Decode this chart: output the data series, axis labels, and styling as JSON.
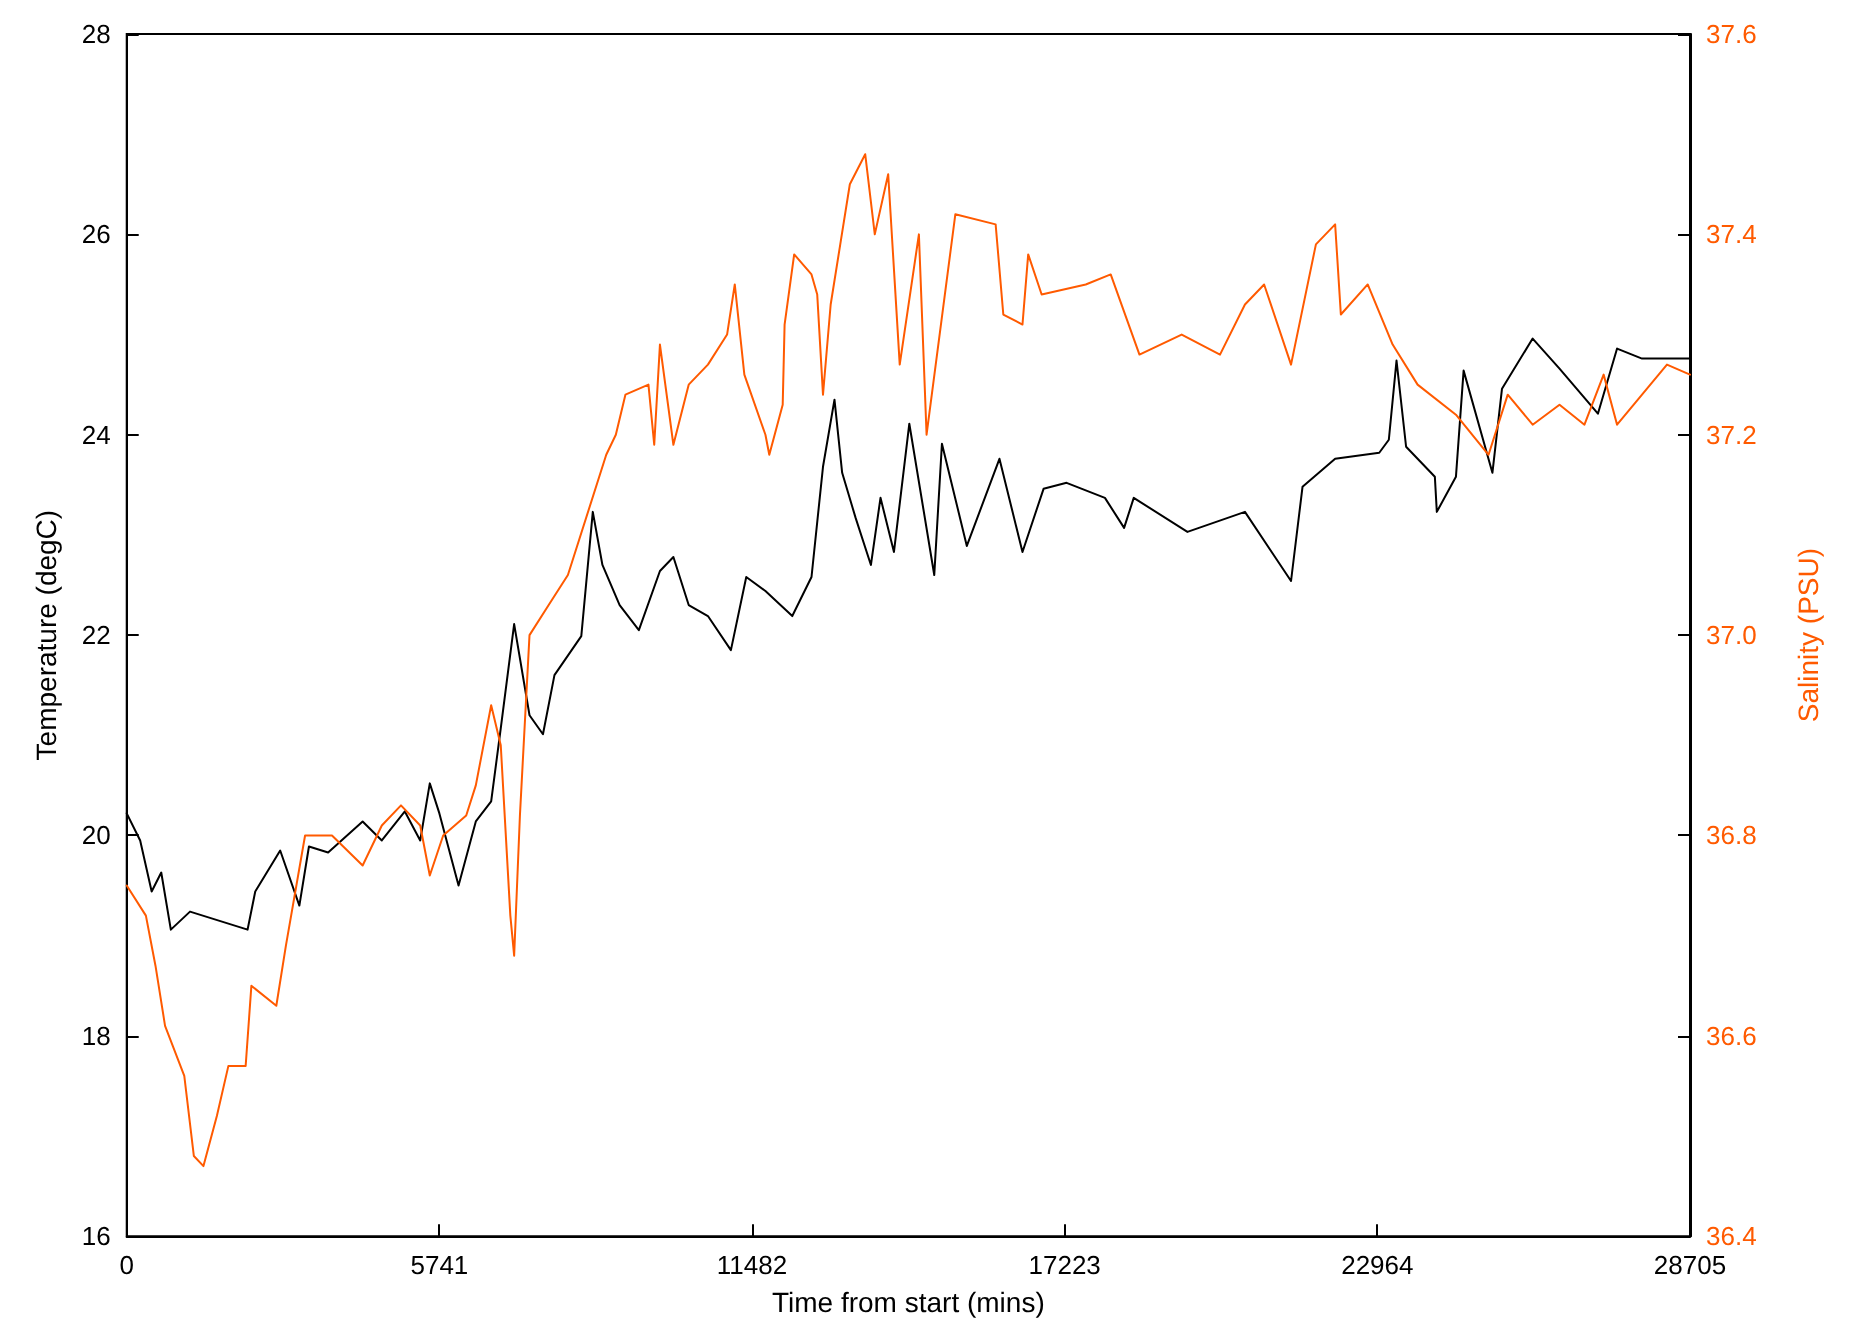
{
  "chart_data": {
    "type": "line",
    "xlabel": "Time from start (mins)",
    "ylabel": "Temperature (degC)",
    "y2label": "Salinity (PSU)",
    "xlim": [
      0,
      28705
    ],
    "xticks": [
      0,
      5741,
      11482,
      17223,
      22964,
      28705
    ],
    "ylim": [
      16,
      28
    ],
    "yticks": [
      16,
      18,
      20,
      22,
      24,
      26,
      28
    ],
    "y2lim": [
      36.4,
      37.6
    ],
    "y2ticks": [
      {
        "value": 36.4,
        "label": "36.4"
      },
      {
        "value": 36.6,
        "label": "36.6"
      },
      {
        "value": 36.8,
        "label": "36.8"
      },
      {
        "value": 37,
        "label": "37.0"
      },
      {
        "value": 37.2,
        "label": "37.2"
      },
      {
        "value": 37.4,
        "label": "37.4"
      },
      {
        "value": 37.6,
        "label": "37.6"
      }
    ],
    "grid": false,
    "marker": "none",
    "line_style": "solid",
    "series": [
      {
        "color": "#000000",
        "x": [
          0,
          247,
          458,
          634,
          810,
          1162,
          2219,
          2360,
          2818,
          3170,
          3346,
          3698,
          4332,
          4684,
          5107,
          5389,
          5565,
          5741,
          6093,
          6410,
          6692,
          6868,
          7114,
          7396,
          7643,
          7854,
          8347,
          8558,
          8735,
          9051,
          9404,
          9791,
          10038,
          10319,
          10672,
          11094,
          11376,
          11728,
          12221,
          12574,
          12785,
          12996,
          13137,
          13384,
          13665,
          13841,
          14088,
          14370,
          14828,
          14969,
          15426,
          16025,
          16448,
          16835,
          17258,
          17962,
          18314,
          18491,
          19477,
          20533,
          21379,
          21590,
          22189,
          22999,
          23175,
          23316,
          23492,
          24020,
          24056,
          24407,
          24548,
          25077,
          25253,
          25816,
          26309,
          27014,
          27366,
          27824,
          28705
        ],
        "values": [
          20.22,
          19.95,
          19.44,
          19.63,
          19.06,
          19.24,
          19.06,
          19.44,
          19.85,
          19.3,
          19.89,
          19.83,
          20.14,
          19.95,
          20.24,
          19.95,
          20.52,
          20.22,
          19.5,
          20.14,
          20.34,
          21.07,
          22.11,
          21.2,
          21.01,
          21.6,
          21.99,
          23.23,
          22.7,
          22.3,
          22.05,
          22.64,
          22.78,
          22.3,
          22.19,
          21.85,
          22.58,
          22.44,
          22.19,
          22.58,
          23.68,
          24.35,
          23.62,
          23.17,
          22.7,
          23.37,
          22.83,
          24.11,
          22.6,
          23.91,
          22.89,
          23.76,
          22.83,
          23.46,
          23.52,
          23.37,
          23.07,
          23.37,
          23.03,
          23.23,
          22.54,
          23.48,
          23.76,
          23.82,
          23.95,
          24.74,
          23.88,
          23.58,
          23.23,
          23.58,
          24.64,
          23.62,
          24.46,
          24.96,
          24.66,
          24.21,
          24.86,
          24.76,
          24.76
        ]
      },
      {
        "color": "#ff5a00",
        "axis": "y2",
        "x": [
          0,
          352,
          528,
          704,
          1057,
          1233,
          1409,
          1655,
          1867,
          2184,
          2289,
          2747,
          2923,
          3275,
          3769,
          4332,
          4684,
          5036,
          5389,
          5565,
          5811,
          6234,
          6410,
          6692,
          6868,
          7044,
          7114,
          7220,
          7396,
          7748,
          8101,
          8805,
          8981,
          9157,
          9580,
          9686,
          9791,
          10038,
          10319,
          10672,
          11024,
          11165,
          11341,
          11728,
          11799,
          12045,
          12080,
          12256,
          12574,
          12679,
          12785,
          12926,
          13102,
          13278,
          13560,
          13736,
          13982,
          14194,
          14546,
          14687,
          15215,
          15955,
          16096,
          16448,
          16553,
          16800,
          17610,
          18068,
          18596,
          19371,
          20075,
          20533,
          20885,
          21379,
          21836,
          22189,
          22294,
          22787,
          23245,
          23703,
          24407,
          25006,
          25358,
          25816,
          26309,
          26767,
          27119,
          27366,
          27824,
          28282,
          28705
        ],
        "values": [
          36.75,
          36.72,
          36.67,
          36.61,
          36.56,
          36.48,
          36.47,
          36.52,
          36.57,
          36.57,
          36.65,
          36.63,
          36.69,
          36.8,
          36.8,
          36.77,
          36.81,
          36.83,
          36.81,
          36.76,
          36.8,
          36.82,
          36.85,
          36.93,
          36.89,
          36.72,
          36.68,
          36.82,
          37.0,
          37.03,
          37.06,
          37.18,
          37.2,
          37.24,
          37.25,
          37.19,
          37.29,
          37.19,
          37.25,
          37.27,
          37.3,
          37.35,
          37.26,
          37.2,
          37.18,
          37.23,
          37.31,
          37.38,
          37.36,
          37.34,
          37.24,
          37.33,
          37.39,
          37.45,
          37.48,
          37.4,
          37.46,
          37.27,
          37.4,
          37.2,
          37.42,
          37.41,
          37.32,
          37.31,
          37.38,
          37.34,
          37.35,
          37.36,
          37.28,
          37.3,
          37.28,
          37.33,
          37.35,
          37.27,
          37.39,
          37.41,
          37.32,
          37.35,
          37.29,
          37.25,
          37.22,
          37.18,
          37.24,
          37.21,
          37.23,
          37.21,
          37.26,
          37.21,
          37.24,
          37.27,
          37.26
        ]
      }
    ]
  }
}
